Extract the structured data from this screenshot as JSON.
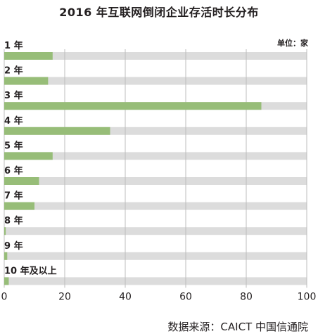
{
  "chart_data": {
    "type": "bar",
    "orientation": "horizontal",
    "title": "2016 年互联网倒闭企业存活时长分布",
    "unit_label": "单位：家",
    "categories": [
      "1 年",
      "2 年",
      "3 年",
      "4 年",
      "5 年",
      "6 年",
      "7 年",
      "8 年",
      "9 年",
      "10 年及以上"
    ],
    "values": [
      16,
      14.5,
      85,
      35,
      16,
      11.5,
      10,
      0.5,
      1,
      1.5
    ],
    "xlim": [
      0,
      100
    ],
    "xticks": [
      "0",
      "20",
      "40",
      "60",
      "80",
      "100"
    ],
    "grid": true,
    "colors": {
      "bar": "#97bd78",
      "track": "#dcdcdc",
      "grid": "#bdbdbd",
      "text": "#231f20"
    }
  },
  "source": "数据来源：CAICT 中国信通院"
}
